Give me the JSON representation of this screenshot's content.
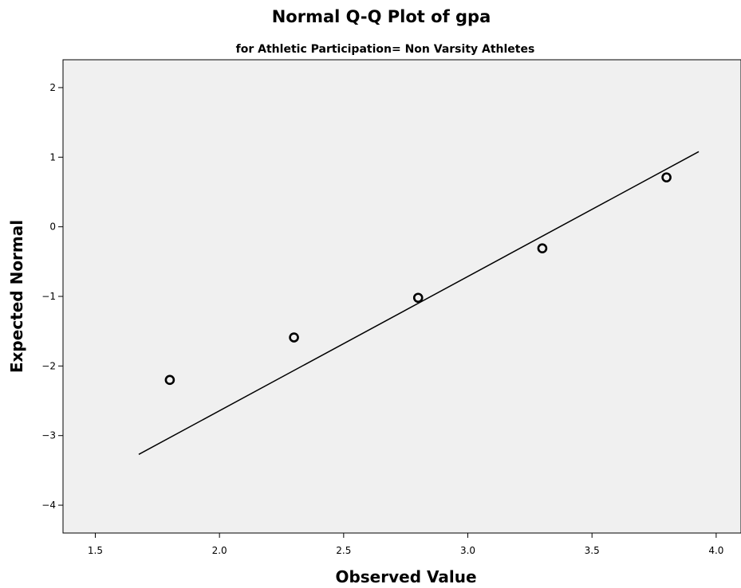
{
  "chart_data": {
    "type": "scatter",
    "title": "Normal Q-Q Plot of gpa",
    "subtitle": "for Athletic Participation= Non Varsity Athletes",
    "xlabel": "Observed Value",
    "ylabel": "Expected Normal",
    "xlim": [
      1.37,
      4.1
    ],
    "ylim": [
      -4.4,
      2.4
    ],
    "xticks": [
      1.5,
      2.0,
      2.5,
      3.0,
      3.5,
      4.0
    ],
    "xtick_labels": [
      "1.5",
      "2.0",
      "2.5",
      "3.0",
      "3.5",
      "4.0"
    ],
    "yticks": [
      2,
      1,
      0,
      -1,
      -2,
      -3,
      -4
    ],
    "ytick_labels": [
      "2",
      "1",
      "0",
      "−1",
      "−2",
      "−3",
      "−4"
    ],
    "grid": false,
    "points": [
      {
        "x": 1.8,
        "y": -2.2
      },
      {
        "x": 2.3,
        "y": -1.59
      },
      {
        "x": 2.8,
        "y": -1.02
      },
      {
        "x": 3.3,
        "y": -0.31
      },
      {
        "x": 3.8,
        "y": 0.71
      }
    ],
    "reference_line": {
      "x": [
        1.675,
        3.93
      ],
      "y": [
        -3.27,
        1.08
      ]
    },
    "colors": {
      "plot_background": "#f0f0f0",
      "marker": "#000000",
      "line": "#000000"
    }
  }
}
